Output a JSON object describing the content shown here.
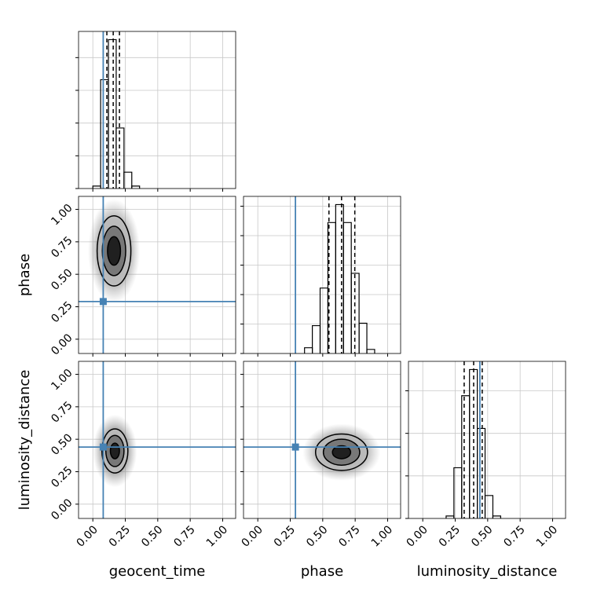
{
  "chart_data": {
    "type": "corner",
    "parameters": [
      "geocent_time",
      "phase",
      "luminosity_distance"
    ],
    "lim": [
      -0.11,
      1.1
    ],
    "ticks": [
      {
        "value": 0,
        "label": "0.00"
      },
      {
        "value": 0.25,
        "label": "0.25"
      },
      {
        "value": 0.5,
        "label": "0.50"
      },
      {
        "value": 0.75,
        "label": "0.75"
      },
      {
        "value": 1,
        "label": "1.00"
      }
    ],
    "grid": true,
    "truths": [
      0.08,
      0.29,
      0.44
    ],
    "truth_color": "#4682b4",
    "histograms": [
      {
        "bins": [
          0.0,
          0.06,
          0.12,
          0.18,
          0.24,
          0.3,
          0.36
        ],
        "counts": [
          3,
          133,
          182,
          74,
          20,
          3
        ],
        "quantiles": [
          0.108,
          0.157,
          0.205
        ],
        "ylim": [
          0,
          192
        ],
        "yticks": [
          0,
          40,
          80,
          120,
          160
        ]
      },
      {
        "bins": [
          0.36,
          0.42,
          0.48,
          0.54,
          0.6,
          0.66,
          0.72,
          0.78,
          0.84,
          0.9
        ],
        "counts": [
          7,
          34,
          80,
          160,
          182,
          160,
          98,
          37,
          5
        ],
        "quantiles": [
          0.548,
          0.645,
          0.747
        ],
        "ylim": [
          0,
          192
        ],
        "yticks": [
          0,
          36,
          72,
          108,
          144,
          180
        ]
      },
      {
        "bins": [
          0.18,
          0.24,
          0.3,
          0.36,
          0.42,
          0.48,
          0.54,
          0.6
        ],
        "counts": [
          3,
          62,
          150,
          182,
          110,
          28,
          3
        ],
        "quantiles": [
          0.319,
          0.392,
          0.458
        ],
        "ylim": [
          0,
          192
        ],
        "yticks": [
          0,
          52,
          104,
          156
        ]
      }
    ],
    "pairs": [
      {
        "x": 0,
        "y": 1,
        "center": [
          0.163,
          0.68
        ],
        "cloud": [
          0.2,
          0.4
        ],
        "contours": [
          [
            0.13,
            0.27
          ],
          [
            0.09,
            0.19
          ],
          [
            0.05,
            0.11
          ]
        ]
      },
      {
        "x": 0,
        "y": 2,
        "center": [
          0.17,
          0.41
        ],
        "cloud": [
          0.17,
          0.28
        ],
        "contours": [
          [
            0.1,
            0.17
          ],
          [
            0.07,
            0.12
          ],
          [
            0.035,
            0.06
          ]
        ]
      },
      {
        "x": 1,
        "y": 2,
        "center": [
          0.645,
          0.4
        ],
        "cloud": [
          0.3,
          0.22
        ],
        "contours": [
          [
            0.2,
            0.14
          ],
          [
            0.14,
            0.1
          ],
          [
            0.07,
            0.05
          ]
        ]
      }
    ]
  }
}
